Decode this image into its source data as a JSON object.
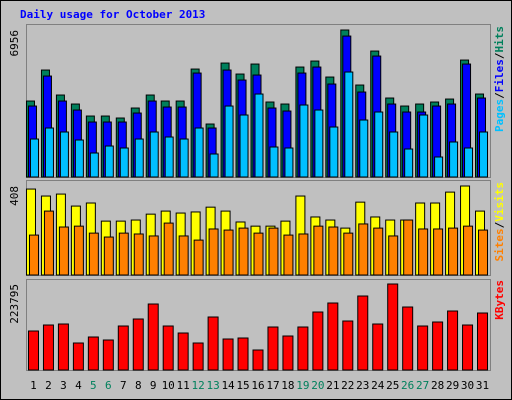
{
  "title": "Daily usage for October 2013",
  "legend_separator": "/",
  "chart_data": [
    {
      "type": "bar",
      "ylim": [
        0,
        6956
      ],
      "yticks": [
        6956
      ],
      "series": [
        {
          "name": "Hits",
          "color": "#00805c",
          "values": [
            3595,
            5061,
            3879,
            3453,
            2885,
            2885,
            2791,
            3264,
            3879,
            3595,
            3595,
            5108,
            2507,
            5392,
            4872,
            5345,
            3548,
            3453,
            5203,
            5487,
            4730,
            6956,
            4352,
            5960,
            3737,
            3358,
            3453,
            3548,
            3689,
            5534,
            3926
          ]
        },
        {
          "name": "Files",
          "color": "#0000ff",
          "values": [
            3358,
            4777,
            3595,
            3169,
            2602,
            2602,
            2602,
            3027,
            3595,
            3311,
            3311,
            4919,
            2318,
            5061,
            4588,
            4825,
            3264,
            3122,
            4919,
            5203,
            4399,
            6669,
            4021,
            5723,
            3453,
            3075,
            3075,
            3358,
            3453,
            5345,
            3737
          ]
        },
        {
          "name": "Pages",
          "color": "#00c0ff",
          "values": [
            1797,
            2318,
            2129,
            1750,
            1135,
            1466,
            1372,
            1797,
            2129,
            1892,
            1797,
            2318,
            1088,
            3358,
            2933,
            3926,
            1419,
            1372,
            3406,
            3169,
            2365,
            4967,
            2696,
            3075,
            2129,
            1324,
            2933,
            946,
            1656,
            1372,
            2129
          ]
        }
      ]
    },
    {
      "type": "bar",
      "ylim": [
        0,
        408
      ],
      "yticks": [
        408
      ],
      "series": [
        {
          "name": "Visits",
          "color": "#ffff00",
          "values": [
            394,
            362,
            371,
            316,
            330,
            247,
            247,
            252,
            279,
            293,
            284,
            289,
            311,
            293,
            243,
            224,
            224,
            247,
            362,
            266,
            252,
            215,
            334,
            266,
            252,
            252,
            330,
            330,
            380,
            408,
            293
          ]
        },
        {
          "name": "Sites",
          "color": "#ff8000",
          "values": [
            183,
            293,
            220,
            224,
            192,
            174,
            192,
            188,
            179,
            238,
            179,
            160,
            211,
            206,
            215,
            192,
            215,
            183,
            188,
            224,
            220,
            192,
            234,
            215,
            179,
            252,
            211,
            211,
            215,
            224,
            206
          ]
        }
      ]
    },
    {
      "type": "bar",
      "ylim": [
        0,
        223795
      ],
      "yticks": [
        223795
      ],
      "categories": [
        "1",
        "2",
        "3",
        "4",
        "5",
        "6",
        "7",
        "8",
        "9",
        "10",
        "11",
        "12",
        "13",
        "14",
        "15",
        "16",
        "17",
        "18",
        "19",
        "20",
        "21",
        "22",
        "23",
        "24",
        "25",
        "26",
        "27",
        "28",
        "29",
        "30",
        "31"
      ],
      "category_colors": [
        "#000000",
        "#000000",
        "#000000",
        "#000000",
        "#00805c",
        "#00805c",
        "#000000",
        "#000000",
        "#000000",
        "#000000",
        "#000000",
        "#00805c",
        "#00805c",
        "#000000",
        "#000000",
        "#000000",
        "#000000",
        "#000000",
        "#00805c",
        "#00805c",
        "#000000",
        "#000000",
        "#000000",
        "#000000",
        "#000000",
        "#00805c",
        "#00805c",
        "#000000",
        "#000000",
        "#000000",
        "#000000"
      ],
      "series": [
        {
          "name": "KBytes",
          "color": "#ff0000",
          "values": [
            101478,
            117090,
            119692,
            70254,
            85866,
            78060,
            114488,
            132702,
            171732,
            114488,
            96274,
            70254,
            137906,
            80662,
            83264,
            52040,
            111886,
            88468,
            111886,
            150916,
            174334,
            127498,
            192548,
            119692,
            223795,
            163926,
            114488,
            124896,
            153518,
            117090,
            148314
          ]
        }
      ]
    }
  ]
}
